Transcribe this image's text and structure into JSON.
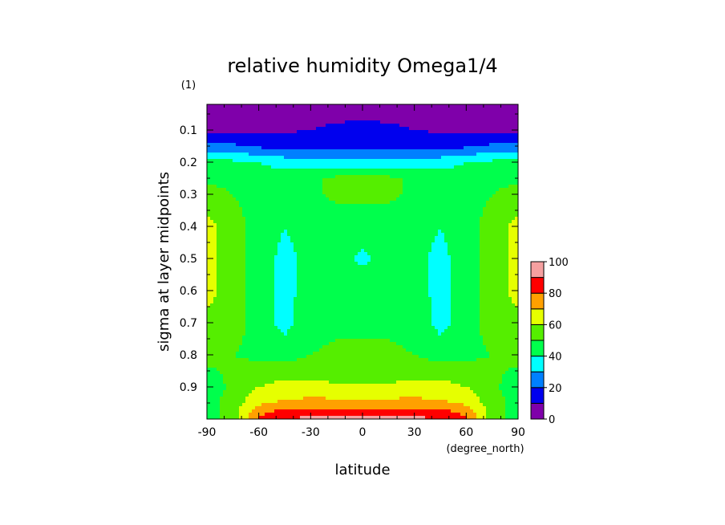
{
  "chart_data": {
    "type": "heatmap",
    "subtype": "filled-contour",
    "title": "relative humidity Omega1/4",
    "units": "(1)",
    "xlabel": "latitude",
    "xunits": "(degree_north)",
    "ylabel": "sigma at layer midpoints",
    "xlim": [
      -90,
      90
    ],
    "ylim": [
      1.0,
      0.02
    ],
    "y_inverted": true,
    "x_ticks": [
      "-90",
      "-60",
      "-30",
      "0",
      "30",
      "60",
      "90"
    ],
    "y_ticks": [
      "0.1",
      "0.2",
      "0.3",
      "0.4",
      "0.5",
      "0.6",
      "0.7",
      "0.8",
      "0.9"
    ],
    "colorbar": {
      "levels": [
        0,
        10,
        20,
        30,
        40,
        50,
        60,
        70,
        80,
        90,
        100
      ],
      "tick_labels": [
        "0",
        "20",
        "40",
        "60",
        "80",
        "100"
      ],
      "colors": [
        "#7f00aa",
        "#0000ee",
        "#0080ff",
        "#00ffff",
        "#00ff4c",
        "#55ee00",
        "#e6ff00",
        "#ffa000",
        "#ff0000",
        "#f5a0a0"
      ]
    },
    "field": {
      "description": "relative humidity (%) approximated on a latitude x sigma grid",
      "lat": [
        -90,
        -75,
        -60,
        -45,
        -30,
        -15,
        0,
        15,
        30,
        45,
        60,
        75,
        90
      ],
      "sigma": [
        0.02,
        0.1,
        0.15,
        0.2,
        0.25,
        0.3,
        0.4,
        0.5,
        0.6,
        0.7,
        0.8,
        0.85,
        0.9,
        0.95,
        0.98,
        1.0
      ],
      "values": [
        [
          5,
          5,
          5,
          5,
          5,
          5,
          5,
          5,
          5,
          5,
          5,
          5,
          5
        ],
        [
          5,
          5,
          7,
          9,
          10,
          12,
          13,
          12,
          10,
          9,
          7,
          5,
          5
        ],
        [
          25,
          22,
          18,
          15,
          15,
          16,
          18,
          16,
          15,
          15,
          18,
          22,
          25
        ],
        [
          42,
          42,
          40,
          36,
          33,
          32,
          32,
          32,
          33,
          36,
          40,
          42,
          42
        ],
        [
          48,
          46,
          45,
          44,
          48,
          52,
          52,
          52,
          48,
          44,
          45,
          46,
          48
        ],
        [
          55,
          50,
          45,
          45,
          48,
          52,
          52,
          52,
          48,
          45,
          45,
          50,
          55
        ],
        [
          63,
          55,
          45,
          40,
          45,
          45,
          45,
          45,
          45,
          40,
          45,
          55,
          63
        ],
        [
          63,
          55,
          45,
          37,
          43,
          44,
          38,
          44,
          43,
          37,
          45,
          55,
          63
        ],
        [
          63,
          55,
          45,
          37,
          44,
          46,
          47,
          46,
          44,
          37,
          45,
          55,
          63
        ],
        [
          58,
          55,
          45,
          37,
          46,
          48,
          48,
          48,
          46,
          37,
          45,
          55,
          58
        ],
        [
          55,
          50,
          47,
          44,
          50,
          52,
          52,
          52,
          50,
          44,
          47,
          50,
          55
        ],
        [
          48,
          52,
          56,
          58,
          56,
          55,
          55,
          55,
          56,
          58,
          56,
          52,
          48
        ],
        [
          45,
          52,
          60,
          62,
          62,
          62,
          62,
          62,
          62,
          62,
          60,
          52,
          45
        ],
        [
          45,
          55,
          68,
          72,
          74,
          73,
          73,
          73,
          74,
          72,
          68,
          55,
          45
        ],
        [
          45,
          55,
          78,
          84,
          86,
          85,
          85,
          85,
          86,
          84,
          78,
          55,
          45
        ],
        [
          45,
          55,
          82,
          88,
          94,
          94,
          93,
          94,
          94,
          88,
          82,
          55,
          45
        ]
      ]
    }
  }
}
